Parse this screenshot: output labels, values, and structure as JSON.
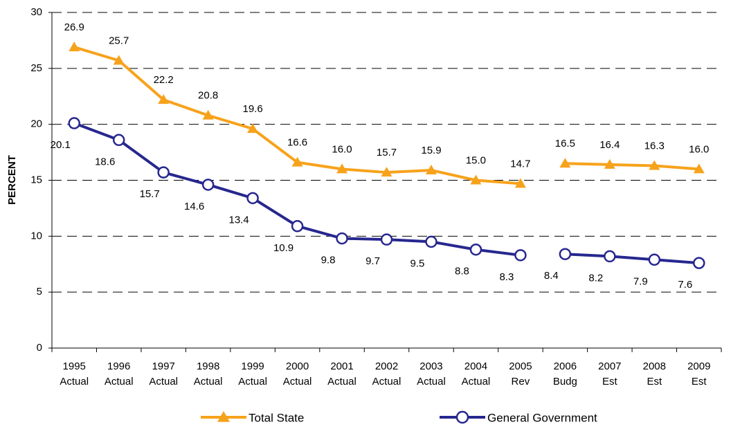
{
  "chart_data": {
    "type": "line",
    "y_label": "PERCENT",
    "categories": [
      [
        "1995",
        "Actual"
      ],
      [
        "1996",
        "Actual"
      ],
      [
        "1997",
        "Actual"
      ],
      [
        "1998",
        "Actual"
      ],
      [
        "1999",
        "Actual"
      ],
      [
        "2000",
        "Actual"
      ],
      [
        "2001",
        "Actual"
      ],
      [
        "2002",
        "Actual"
      ],
      [
        "2003",
        "Actual"
      ],
      [
        "2004",
        "Actual"
      ],
      [
        "2005",
        "Rev"
      ],
      [
        "2006",
        "Budg"
      ],
      [
        "2007",
        "Est"
      ],
      [
        "2008",
        "Est"
      ],
      [
        "2009",
        "Est"
      ]
    ],
    "line_break_before": 11,
    "series": [
      {
        "name": "Total State",
        "color": "#f7a21b",
        "marker": "triangle",
        "values": [
          26.9,
          25.7,
          22.2,
          20.8,
          19.6,
          16.6,
          16.0,
          15.7,
          15.9,
          15.0,
          14.7,
          16.5,
          16.4,
          16.3,
          16.0
        ],
        "value_labels": [
          "26.9",
          "25.7",
          "22.2",
          "20.8",
          "19.6",
          "16.6",
          "16.0",
          "15.7",
          "15.9",
          "15.0",
          "14.7",
          "16.5",
          "16.4",
          "16.3",
          "16.0"
        ]
      },
      {
        "name": "General Government",
        "color": "#27278f",
        "marker": "circle",
        "values": [
          20.1,
          18.6,
          15.7,
          14.6,
          13.4,
          10.9,
          9.8,
          9.7,
          9.5,
          8.8,
          8.3,
          8.4,
          8.2,
          7.9,
          7.6
        ],
        "value_labels": [
          "20.1",
          "18.6",
          "15.7",
          "14.6",
          "13.4",
          "10.9",
          "9.8",
          "9.7",
          "9.5",
          "8.8",
          "8.3",
          "8.4",
          "8.2",
          "7.9",
          "7.6"
        ]
      }
    ],
    "ylim": [
      0,
      30
    ],
    "yticks": [
      0,
      5,
      10,
      15,
      20,
      25,
      30
    ],
    "grid": true
  }
}
